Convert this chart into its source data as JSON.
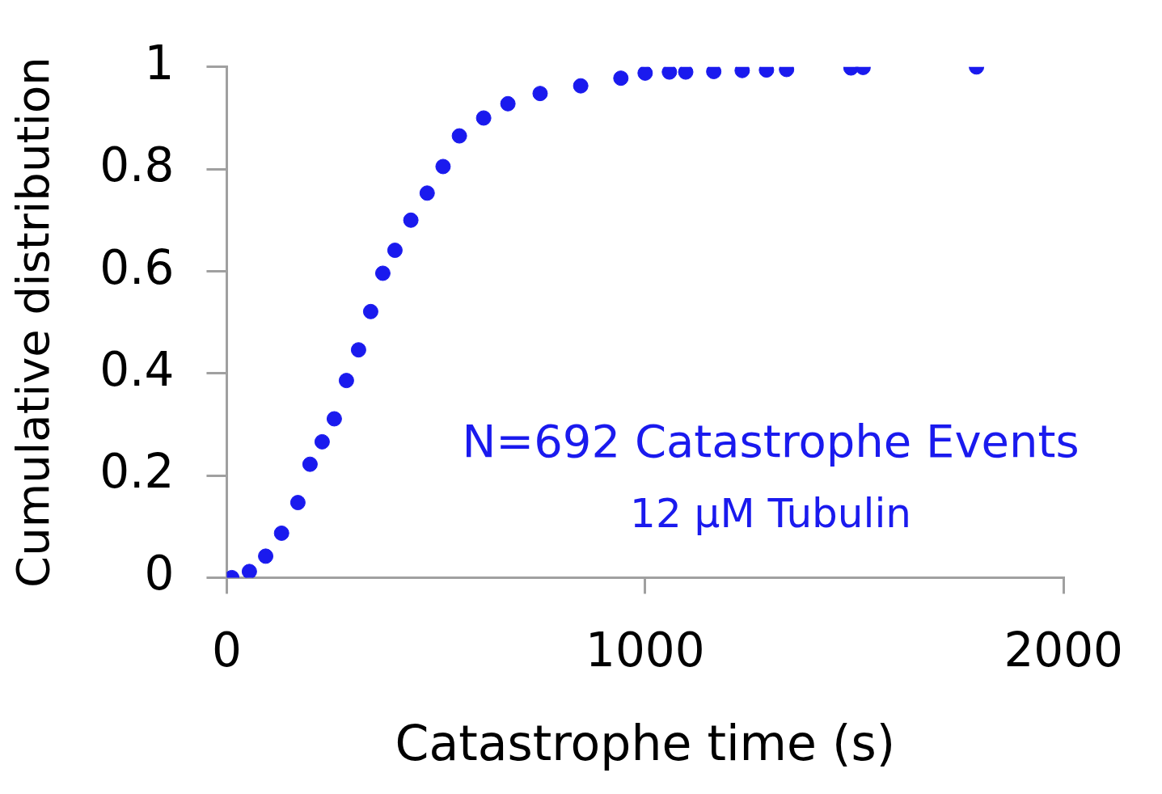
{
  "chart_data": {
    "type": "scatter",
    "xlabel": "Catastrophe time (s)",
    "ylabel": "Cumulative distribution",
    "annotations": [
      "N=692 Catastrophe Events",
      "12 µM Tubulin"
    ],
    "xlim": [
      0,
      2000
    ],
    "xticks": [
      0,
      1000,
      2000
    ],
    "ylim": [
      0,
      1
    ],
    "yticks": [
      0,
      0.2,
      0.4,
      0.6,
      0.8,
      1
    ],
    "grid": false,
    "legend": false,
    "marker": "circle",
    "series": [
      {
        "color": "#1a1aee",
        "x": [
          12,
          54,
          93,
          131,
          170,
          199,
          228,
          257,
          286,
          315,
          344,
          373,
          402,
          440,
          479,
          517,
          556,
          614,
          672,
          749,
          846,
          942,
          1000,
          1058,
          1097,
          1164,
          1232,
          1290,
          1338,
          1492,
          1521,
          1792
        ],
        "values": [
          0,
          0.012,
          0.042,
          0.087,
          0.147,
          0.222,
          0.266,
          0.311,
          0.386,
          0.446,
          0.521,
          0.596,
          0.641,
          0.7,
          0.753,
          0.805,
          0.865,
          0.9,
          0.928,
          0.948,
          0.963,
          0.978,
          0.988,
          0.99,
          0.99,
          0.991,
          0.993,
          0.994,
          0.995,
          0.998,
          0.999,
          1
        ]
      }
    ]
  }
}
